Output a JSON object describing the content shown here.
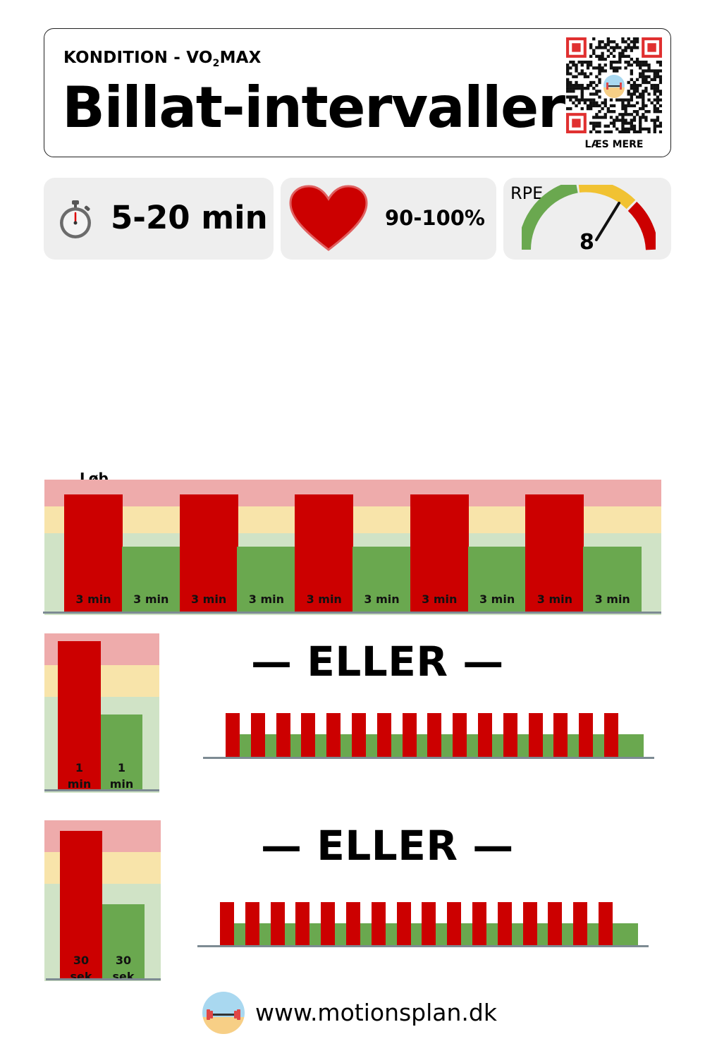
{
  "header": {
    "kicker_prefix": "KONDITION - VO",
    "kicker_sub": "2",
    "kicker_suffix": "MAX",
    "title": "Billat-intervaller",
    "qr_label": "LÆS MERE"
  },
  "stats": {
    "duration": "5-20 min",
    "heart_rate": "90-100%",
    "rpe_label": "RPE",
    "rpe_value": "8"
  },
  "colors": {
    "work": "#cc0000",
    "rest": "#6aa84f",
    "zone_red": "#eeabab",
    "zone_yellow": "#f8e4aa",
    "zone_green": "#d0e3c6"
  },
  "main_protocol": {
    "activity": "Løb",
    "intervals": [
      {
        "type": "work",
        "label": "3 min"
      },
      {
        "type": "rest",
        "label": "3 min"
      },
      {
        "type": "work",
        "label": "3 min"
      },
      {
        "type": "rest",
        "label": "3 min"
      },
      {
        "type": "work",
        "label": "3 min"
      },
      {
        "type": "rest",
        "label": "3 min"
      },
      {
        "type": "work",
        "label": "3 min"
      },
      {
        "type": "rest",
        "label": "3 min"
      },
      {
        "type": "work",
        "label": "3 min"
      },
      {
        "type": "rest",
        "label": "3 min"
      }
    ]
  },
  "alternatives": [
    {
      "separator": "— ELLER —",
      "work_label_1": "1",
      "work_label_2": "min",
      "rest_label_1": "1",
      "rest_label_2": "min",
      "repetitions": 16
    },
    {
      "separator": "— ELLER —",
      "work_label_1": "30",
      "work_label_2": "sek",
      "rest_label_1": "30",
      "rest_label_2": "sek",
      "repetitions": 16
    }
  ],
  "footer": {
    "url": "www.motionsplan.dk"
  }
}
